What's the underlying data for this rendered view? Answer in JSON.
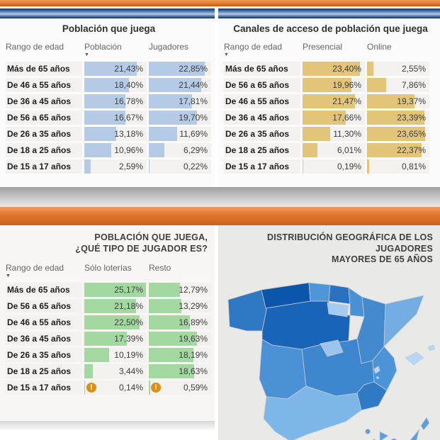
{
  "colors": {
    "top_bar_orange": "#e4772e",
    "glossy_blue_bar": "#3f68a4",
    "divider_gray": "#c9c9c9",
    "divider_orange": "#e0752c",
    "blue_data_bar": "#b5cbe5",
    "gold_data_bar": "#e2c579",
    "green_data_bar": "#a3d9a1",
    "warning_icon": "#dd8f12"
  },
  "bar_scale_max_percent": 25.5,
  "chart_data": [
    {
      "type": "table",
      "key": "top_left",
      "title": "Población que juega",
      "columns": [
        "Rango de edad",
        "Población",
        "Jugadores"
      ],
      "sort_column_index": 1,
      "sort_direction": "desc",
      "bar_color": "#b5cbe5",
      "rows": [
        {
          "label": "Más de 65 años",
          "col1": 21.43,
          "col1_display": "21,43%",
          "col2": 22.85,
          "col2_display": "22,85%"
        },
        {
          "label": "De 46 a 55 años",
          "col1": 18.4,
          "col1_display": "18,40%",
          "col2": 21.44,
          "col2_display": "21,44%"
        },
        {
          "label": "De 36 a 45 años",
          "col1": 16.78,
          "col1_display": "16,78%",
          "col2": 17.81,
          "col2_display": "17,81%"
        },
        {
          "label": "De 56 a 65 años",
          "col1": 16.67,
          "col1_display": "16,67%",
          "col2": 19.7,
          "col2_display": "19,70%"
        },
        {
          "label": "De 26 a 35 años",
          "col1": 13.18,
          "col1_display": "13,18%",
          "col2": 11.69,
          "col2_display": "11,69%"
        },
        {
          "label": "De 18 a 25 años",
          "col1": 10.96,
          "col1_display": "10,96%",
          "col2": 6.29,
          "col2_display": "6,29%"
        },
        {
          "label": "De 15 a 17 años",
          "col1": 2.59,
          "col1_display": "2,59%",
          "col2": 0.22,
          "col2_display": "0,22%"
        }
      ]
    },
    {
      "type": "table",
      "key": "top_right",
      "title": "Canales de acceso de población que juega",
      "columns": [
        "Rango de edad",
        "Presencial",
        "Online"
      ],
      "sort_column_index": 0,
      "sort_direction": "desc",
      "bar_color": "#e2c579",
      "rows": [
        {
          "label": "Más de 65 años",
          "col1": 23.4,
          "col1_display": "23,40%",
          "col2": 2.55,
          "col2_display": "2,55%"
        },
        {
          "label": "De 56 a 65 años",
          "col1": 19.96,
          "col1_display": "19,96%",
          "col2": 7.86,
          "col2_display": "7,86%"
        },
        {
          "label": "De 46 a 55 años",
          "col1": 21.47,
          "col1_display": "21,47%",
          "col2": 19.37,
          "col2_display": "19,37%"
        },
        {
          "label": "De 36 a 45 años",
          "col1": 17.66,
          "col1_display": "17,66%",
          "col2": 23.39,
          "col2_display": "23,39%"
        },
        {
          "label": "De 26 a 35 años",
          "col1": 11.3,
          "col1_display": "11,30%",
          "col2": 23.65,
          "col2_display": "23,65%"
        },
        {
          "label": "De 18 a 25 años",
          "col1": 6.01,
          "col1_display": "6,01%",
          "col2": 22.37,
          "col2_display": "22,37%"
        },
        {
          "label": "De 15 a 17 años",
          "col1": 0.19,
          "col1_display": "0,19%",
          "col2": 0.81,
          "col2_display": "0,81%"
        }
      ]
    },
    {
      "type": "table",
      "key": "bottom_left",
      "title_line1": "POBLACIÓN QUE JUEGA,",
      "title_line2": "¿QUÉ TIPO DE JUGADOR ES?",
      "columns": [
        "Rango de edad",
        "Sólo loterías",
        "Resto"
      ],
      "sort_column_index": 0,
      "sort_direction": "desc",
      "bar_color": "#a3d9a1",
      "rows": [
        {
          "label": "Más de 65 años",
          "col1": 25.17,
          "col1_display": "25,17%",
          "col2": 12.79,
          "col2_display": "12,79%"
        },
        {
          "label": "De 56 a 65 años",
          "col1": 21.18,
          "col1_display": "21,18%",
          "col2": 13.29,
          "col2_display": "13,29%"
        },
        {
          "label": "De 46 a 55 años",
          "col1": 22.5,
          "col1_display": "22,50%",
          "col2": 16.89,
          "col2_display": "16,89%"
        },
        {
          "label": "De 36 a 45 años",
          "col1": 17.39,
          "col1_display": "17,39%",
          "col2": 19.63,
          "col2_display": "19,63%"
        },
        {
          "label": "De 26 a 35 años",
          "col1": 10.19,
          "col1_display": "10,19%",
          "col2": 18.19,
          "col2_display": "18,19%"
        },
        {
          "label": "De 18 a 25 años",
          "col1": 3.44,
          "col1_display": "3,44%",
          "col2": 18.63,
          "col2_display": "18,63%"
        },
        {
          "label": "De 15 a 17 años",
          "col1": 0.14,
          "col1_display": "0,14%",
          "col2": 0.59,
          "col2_display": "0,59%",
          "warn1": true,
          "warn2": true
        }
      ]
    },
    {
      "type": "choropleth-map",
      "key": "map",
      "title_line1": "DISTRIBUCIÓN GEOGRÁFICA DE LOS JUGADORES",
      "title_line2": "MAYORES DE 65 AÑOS",
      "note": "Spain regions, darker blue = more players over 65",
      "regions": [
        {
          "id": "castilla_y_leon",
          "name": "Castilla y León",
          "color": "#1864b8"
        },
        {
          "id": "galicia",
          "name": "Galicia",
          "color": "#3078c4"
        },
        {
          "id": "asturias",
          "name": "Asturias",
          "color": "#0a56aa"
        },
        {
          "id": "cantabria",
          "name": "Cantabria",
          "color": "#4e96da"
        },
        {
          "id": "pais_vasco",
          "name": "País Vasco",
          "color": "#2a72c0"
        },
        {
          "id": "navarra",
          "name": "Navarra",
          "color": "#4a90d4"
        },
        {
          "id": "la_rioja",
          "name": "La Rioja",
          "color": "#a4cbf0"
        },
        {
          "id": "aragon",
          "name": "Aragón",
          "color": "#428acd"
        },
        {
          "id": "cataluna",
          "name": "Cataluña",
          "color": "#74ade3"
        },
        {
          "id": "castilla_la_mancha",
          "name": "Castilla-La Mancha",
          "color": "#3e87cf"
        },
        {
          "id": "madrid",
          "name": "Madrid",
          "color": "#9cc5ee"
        },
        {
          "id": "extremadura",
          "name": "Extremadura",
          "color": "#4a91d5"
        },
        {
          "id": "valencia",
          "name": "Comunidad Valenciana",
          "color": "#4c93d7"
        },
        {
          "id": "murcia",
          "name": "Murcia",
          "color": "#2f79c5"
        },
        {
          "id": "andalucia",
          "name": "Andalucía",
          "color": "#7db6e9"
        },
        {
          "id": "baleares",
          "name": "Islas Baleares",
          "color": "#b4d7f5"
        },
        {
          "id": "canarias",
          "name": "Islas Canarias",
          "color": "#5c9ee1"
        }
      ]
    }
  ]
}
